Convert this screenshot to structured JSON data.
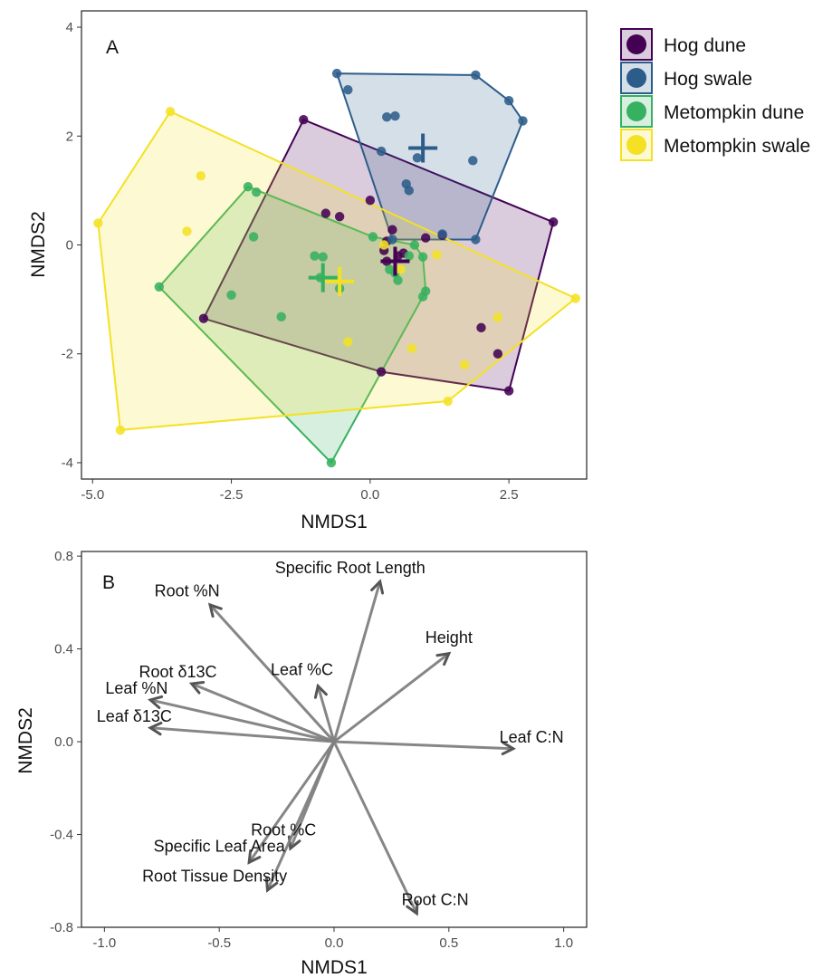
{
  "chart_data": [
    {
      "type": "scatter",
      "panel_label": "A",
      "xlabel": "NMDS1",
      "ylabel": "NMDS2",
      "xlim": [
        -5.2,
        3.9
      ],
      "ylim": [
        -4.3,
        4.3
      ],
      "xticks": [
        -5.0,
        -2.5,
        0.0,
        2.5
      ],
      "xtick_labels": [
        "-5.0",
        "-2.5",
        "0.0",
        "2.5"
      ],
      "yticks": [
        -4,
        -2,
        0,
        2,
        4
      ],
      "ytick_labels": [
        "-4",
        "-2",
        "0",
        "2",
        "4"
      ],
      "grid": false,
      "legend_position": "right",
      "series": [
        {
          "name": "Hog dune",
          "color": "#440154",
          "hull": [
            [
              -3.0,
              -1.35
            ],
            [
              -1.2,
              2.3
            ],
            [
              3.3,
              0.42
            ],
            [
              2.5,
              -2.68
            ],
            [
              0.2,
              -2.33
            ]
          ],
          "centroid": [
            0.45,
            -0.3
          ],
          "points": [
            [
              -3.0,
              -1.35
            ],
            [
              -1.2,
              2.3
            ],
            [
              3.3,
              0.42
            ],
            [
              2.5,
              -2.68
            ],
            [
              0.2,
              -2.33
            ],
            [
              -0.8,
              0.58
            ],
            [
              -0.55,
              0.52
            ],
            [
              0.0,
              0.82
            ],
            [
              0.4,
              0.28
            ],
            [
              0.3,
              0.07
            ],
            [
              0.25,
              -0.1
            ],
            [
              0.6,
              -0.15
            ],
            [
              0.3,
              -0.3
            ],
            [
              1.3,
              0.18
            ],
            [
              1.0,
              0.13
            ],
            [
              2.0,
              -1.52
            ],
            [
              2.3,
              -2.0
            ],
            [
              0.5,
              -0.2
            ]
          ]
        },
        {
          "name": "Hog swale",
          "color": "#2c5d8a",
          "hull": [
            [
              -0.6,
              3.15
            ],
            [
              1.9,
              3.12
            ],
            [
              2.5,
              2.65
            ],
            [
              2.75,
              2.28
            ],
            [
              1.9,
              0.1
            ],
            [
              0.4,
              0.1
            ]
          ],
          "centroid": [
            0.95,
            1.78
          ],
          "points": [
            [
              -0.6,
              3.15
            ],
            [
              1.9,
              3.12
            ],
            [
              2.5,
              2.65
            ],
            [
              2.75,
              2.28
            ],
            [
              1.9,
              0.1
            ],
            [
              0.4,
              0.1
            ],
            [
              -0.4,
              2.85
            ],
            [
              0.3,
              2.35
            ],
            [
              0.45,
              2.37
            ],
            [
              0.2,
              1.72
            ],
            [
              0.85,
              1.6
            ],
            [
              0.65,
              1.12
            ],
            [
              0.7,
              1.0
            ],
            [
              1.85,
              1.55
            ],
            [
              1.3,
              0.2
            ]
          ]
        },
        {
          "name": "Metompkin dune",
          "color": "#35b15f",
          "hull": [
            [
              -2.2,
              1.07
            ],
            [
              -3.8,
              -0.77
            ],
            [
              -0.7,
              -4.0
            ],
            [
              0.95,
              -0.95
            ],
            [
              1.0,
              -0.85
            ],
            [
              0.95,
              -0.22
            ],
            [
              0.8,
              0.0
            ],
            [
              0.05,
              0.15
            ]
          ],
          "centroid": [
            -0.85,
            -0.6
          ],
          "points": [
            [
              -2.2,
              1.07
            ],
            [
              -3.8,
              -0.77
            ],
            [
              -0.7,
              -4.0
            ],
            [
              0.95,
              -0.95
            ],
            [
              1.0,
              -0.85
            ],
            [
              0.95,
              -0.22
            ],
            [
              -2.05,
              0.97
            ],
            [
              -2.1,
              0.15
            ],
            [
              -2.5,
              -0.92
            ],
            [
              -1.6,
              -1.32
            ],
            [
              -1.0,
              -0.2
            ],
            [
              -0.85,
              -0.22
            ],
            [
              -0.9,
              -0.6
            ],
            [
              -0.55,
              -0.8
            ],
            [
              0.35,
              -0.45
            ],
            [
              0.45,
              -0.52
            ],
            [
              0.5,
              -0.65
            ],
            [
              0.7,
              -0.2
            ],
            [
              0.05,
              0.15
            ],
            [
              0.8,
              0.0
            ]
          ]
        },
        {
          "name": "Metompkin swale",
          "color": "#f4e124",
          "hull": [
            [
              -3.6,
              2.45
            ],
            [
              -4.9,
              0.4
            ],
            [
              -4.5,
              -3.4
            ],
            [
              1.4,
              -2.87
            ],
            [
              3.7,
              -0.98
            ]
          ],
          "centroid": [
            -0.55,
            -0.67
          ],
          "points": [
            [
              -3.6,
              2.45
            ],
            [
              -4.9,
              0.4
            ],
            [
              -4.5,
              -3.4
            ],
            [
              1.4,
              -2.87
            ],
            [
              3.7,
              -0.98
            ],
            [
              -3.05,
              1.27
            ],
            [
              -3.3,
              0.25
            ],
            [
              -0.4,
              -1.78
            ],
            [
              0.75,
              -1.9
            ],
            [
              1.7,
              -2.2
            ],
            [
              2.3,
              -1.33
            ],
            [
              1.2,
              -0.18
            ],
            [
              0.55,
              -0.45
            ],
            [
              0.25,
              0.0
            ]
          ]
        }
      ]
    },
    {
      "type": "vector",
      "panel_label": "B",
      "xlabel": "NMDS1",
      "ylabel": "NMDS2",
      "xlim": [
        -1.1,
        1.1
      ],
      "ylim": [
        -0.8,
        0.82
      ],
      "xticks": [
        -1.0,
        -0.5,
        0.0,
        0.5,
        1.0
      ],
      "xtick_labels": [
        "-1.0",
        "-0.5",
        "0.0",
        "0.5",
        "1.0"
      ],
      "yticks": [
        -0.8,
        -0.4,
        0.0,
        0.4,
        0.8
      ],
      "ytick_labels": [
        "-0.8",
        "-0.4",
        "0.0",
        "0.4",
        "0.8"
      ],
      "grid": false,
      "arrow_color": "#808080",
      "vectors": [
        {
          "label": "Specific Root Length",
          "x": 0.2,
          "y": 0.69,
          "lx": 0.07,
          "ly": 0.75
        },
        {
          "label": "Root %N",
          "x": -0.54,
          "y": 0.59,
          "lx": -0.64,
          "ly": 0.65
        },
        {
          "label": "Height",
          "x": 0.5,
          "y": 0.38,
          "lx": 0.5,
          "ly": 0.45
        },
        {
          "label": "Leaf %C",
          "x": -0.07,
          "y": 0.24,
          "lx": -0.14,
          "ly": 0.31
        },
        {
          "label": "Root δ13C",
          "x": -0.62,
          "y": 0.25,
          "lx": -0.68,
          "ly": 0.3
        },
        {
          "label": "Leaf %N",
          "x": -0.8,
          "y": 0.18,
          "lx": -0.86,
          "ly": 0.23
        },
        {
          "label": "Leaf δ13C",
          "x": -0.8,
          "y": 0.06,
          "lx": -0.87,
          "ly": 0.11
        },
        {
          "label": "Leaf C:N",
          "x": 0.78,
          "y": -0.03,
          "lx": 0.86,
          "ly": 0.02
        },
        {
          "label": "Root %C",
          "x": -0.19,
          "y": -0.46,
          "lx": -0.22,
          "ly": -0.38
        },
        {
          "label": "Specific Leaf Area",
          "x": -0.37,
          "y": -0.52,
          "lx": -0.5,
          "ly": -0.45
        },
        {
          "label": "Root Tissue Density",
          "x": -0.29,
          "y": -0.64,
          "lx": -0.52,
          "ly": -0.58
        },
        {
          "label": "Root C:N",
          "x": 0.36,
          "y": -0.74,
          "lx": 0.44,
          "ly": -0.68
        }
      ]
    }
  ]
}
